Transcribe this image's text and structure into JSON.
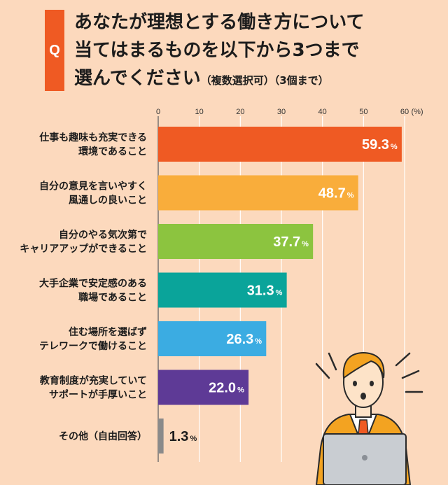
{
  "question": {
    "badge": "Q",
    "line1": "あなたが理想とする働き方について",
    "line2": "当てはまるものを以下から3つまで",
    "line3": "選んでください",
    "note1": "（複数選択可）",
    "note2": "（3個まで）"
  },
  "chart_data": {
    "type": "bar",
    "orientation": "horizontal",
    "unit": "(%)",
    "xlim": [
      0,
      60
    ],
    "ticks": [
      "0",
      "10",
      "20",
      "30",
      "40",
      "50",
      "60"
    ],
    "categories": [
      [
        "仕事も趣味も充実できる",
        "環境であること"
      ],
      [
        "自分の意見を言いやすく",
        "風通しの良いこと"
      ],
      [
        "自分のやる気次第で",
        "キャリアアップができること"
      ],
      [
        "大手企業で安定感のある",
        "職場であること"
      ],
      [
        "住む場所を選ばず",
        "テレワークで働けること"
      ],
      [
        "教育制度が充実していて",
        "サポートが手厚いこと"
      ],
      [
        "その他（自由回答）"
      ]
    ],
    "values": [
      59.3,
      48.7,
      37.7,
      31.3,
      26.3,
      22.0,
      1.3
    ],
    "value_labels": [
      "59.3",
      "48.7",
      "37.7",
      "31.3",
      "26.3",
      "22.0",
      "1.3"
    ],
    "value_suffix": "%",
    "colors": [
      "#ef5a23",
      "#f9ad3b",
      "#8cc43f",
      "#0aa49a",
      "#3bace2",
      "#5e3a96",
      "#8a8a8a"
    ],
    "grid": true
  }
}
